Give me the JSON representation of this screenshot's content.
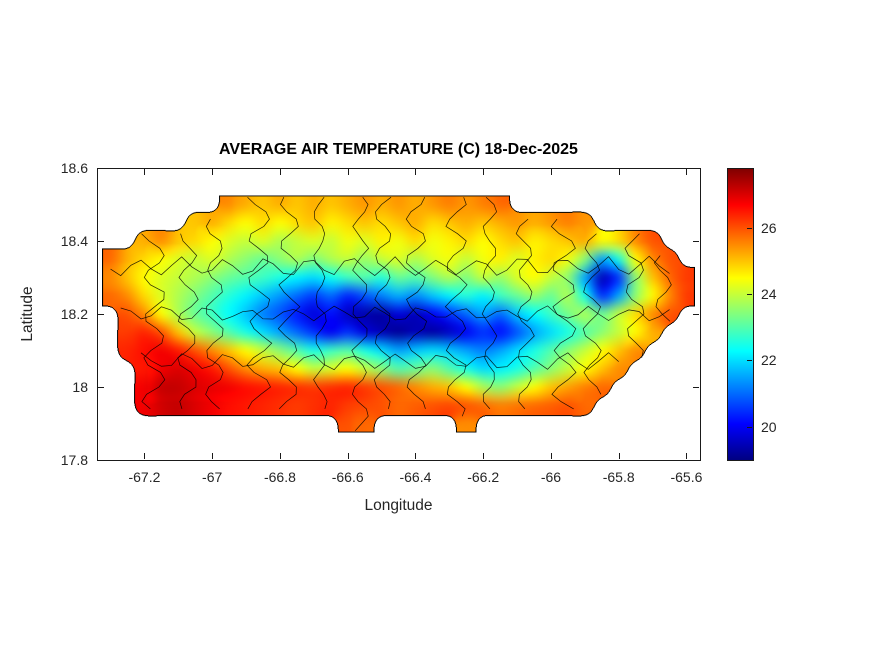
{
  "figure": {
    "title": "AVERAGE AIR TEMPERATURE (C) 18-Dec-2025",
    "xlabel": "Longitude",
    "ylabel": "Latitude"
  },
  "axes": {
    "x_ticks": [
      "-67.2",
      "-67",
      "-66.8",
      "-66.6",
      "-66.4",
      "-66.2",
      "-66",
      "-65.8",
      "-65.6"
    ],
    "x_tick_values": [
      -67.2,
      -67,
      -66.8,
      -66.6,
      -66.4,
      -66.2,
      -66,
      -65.8,
      -65.6
    ],
    "y_ticks": [
      "17.8",
      "18",
      "18.2",
      "18.4",
      "18.6"
    ],
    "y_tick_values": [
      17.8,
      18,
      18.2,
      18.4,
      18.6
    ],
    "xlim": [
      -67.34,
      -65.56
    ],
    "ylim": [
      17.8,
      18.6
    ]
  },
  "colorbar": {
    "tick_labels": [
      "20",
      "22",
      "24",
      "26"
    ],
    "tick_values": [
      20,
      22,
      24,
      26
    ],
    "range": [
      19,
      27.8
    ],
    "colormap": "jet"
  },
  "chart_data": {
    "type": "heatmap",
    "title": "AVERAGE AIR TEMPERATURE (C) 18-Dec-2025",
    "date": "18-Dec-2025",
    "region": "Puerto Rico (municipal boundaries drawn in black)",
    "units": "degrees Celsius",
    "xlabel": "Longitude",
    "ylabel": "Latitude",
    "colormap": "jet",
    "color_range": [
      19,
      27.8
    ],
    "cell_size_deg": 0.05,
    "lons": [
      -67.3,
      -67.25,
      -67.2,
      -67.15,
      -67.1,
      -67.05,
      -67,
      -66.95,
      -66.9,
      -66.85,
      -66.8,
      -66.75,
      -66.7,
      -66.65,
      -66.6,
      -66.55,
      -66.5,
      -66.45,
      -66.4,
      -66.35,
      -66.3,
      -66.25,
      -66.2,
      -66.15,
      -66.1,
      -66.05,
      -66,
      -65.95,
      -65.9,
      -65.85,
      -65.8,
      -65.75,
      -65.7,
      -65.65,
      -65.6
    ],
    "lats": [
      17.9,
      17.95,
      18,
      18.05,
      18.1,
      18.15,
      18.2,
      18.25,
      18.3,
      18.35,
      18.4,
      18.45,
      18.5
    ],
    "values": [
      [
        null,
        null,
        null,
        null,
        null,
        null,
        null,
        null,
        null,
        null,
        null,
        null,
        null,
        null,
        26,
        25.8,
        null,
        null,
        null,
        null,
        null,
        25.5,
        null,
        null,
        null,
        null,
        null,
        null,
        null,
        null,
        null,
        null,
        null,
        null,
        null
      ],
      [
        null,
        null,
        26.8,
        27.1,
        27.2,
        27,
        26.8,
        26.6,
        26.5,
        26.4,
        26.3,
        26.2,
        26.3,
        26.4,
        26.2,
        26.1,
        26,
        25.8,
        25.9,
        26,
        26.1,
        26,
        25.8,
        25.6,
        25.7,
        25.8,
        25.9,
        26,
        25.8,
        null,
        null,
        null,
        null,
        null,
        null
      ],
      [
        null,
        null,
        26.8,
        27.2,
        27.2,
        27,
        26.9,
        26.8,
        26.6,
        26.5,
        26.4,
        26.3,
        26.2,
        26.3,
        26.4,
        26.2,
        26,
        25.8,
        25.5,
        25.2,
        25,
        24.5,
        23.8,
        23.5,
        24,
        24.5,
        25,
        25.3,
        25.6,
        25.8,
        null,
        null,
        null,
        null,
        null
      ],
      [
        null,
        null,
        26.5,
        26.8,
        27,
        26.8,
        26.5,
        26,
        25.5,
        25.2,
        25,
        24.5,
        24,
        24.2,
        24.5,
        24,
        23.5,
        23,
        23.2,
        23.5,
        23,
        22.5,
        22,
        22.2,
        22.5,
        23,
        23.5,
        24,
        24.5,
        25,
        25.5,
        null,
        null,
        null,
        null
      ],
      [
        null,
        26.4,
        26.6,
        26.8,
        26.5,
        26,
        25.5,
        25,
        24.5,
        24,
        23.5,
        23,
        22.5,
        22.8,
        23,
        22.5,
        22,
        21.5,
        21.8,
        22,
        21.8,
        21.5,
        21.2,
        21.5,
        22,
        22.5,
        23,
        23.5,
        24,
        24.5,
        25,
        25.5,
        null,
        null,
        null
      ],
      [
        null,
        26.2,
        26.4,
        26,
        25,
        24,
        23.5,
        23,
        22.5,
        22,
        21.5,
        21,
        20.5,
        20,
        20.5,
        19.8,
        19.5,
        19.2,
        19.5,
        19.3,
        19.6,
        20,
        20.5,
        20.2,
        20.8,
        21.5,
        22,
        22.5,
        23,
        23.5,
        24,
        24.5,
        25.2,
        null,
        null
      ],
      [
        null,
        26,
        25.5,
        24.5,
        23.8,
        23.2,
        22.8,
        22.3,
        21.8,
        21.2,
        20.8,
        20.3,
        19.8,
        20.2,
        19.6,
        19.4,
        19.3,
        19.8,
        19.5,
        20,
        20.5,
        21,
        21.5,
        21,
        21.8,
        22.3,
        22.8,
        23.3,
        23.8,
        23.2,
        24,
        24.8,
        25.5,
        26,
        null
      ],
      [
        25.8,
        25.5,
        24.8,
        24.2,
        23.8,
        23.4,
        23,
        22.6,
        22.2,
        21.8,
        21.4,
        21,
        20.6,
        21,
        20.4,
        20.8,
        21.2,
        21.6,
        21.3,
        21.8,
        22.2,
        22.6,
        22.2,
        22.8,
        23.2,
        23.6,
        23.2,
        23.8,
        22.5,
        20.5,
        21.5,
        23.5,
        24.5,
        25.5,
        26.2
      ],
      [
        25.5,
        25,
        24.5,
        24.2,
        24,
        23.8,
        23.5,
        23.2,
        23,
        22.8,
        22.5,
        22.2,
        22,
        22.4,
        22.8,
        23,
        22.6,
        23.2,
        23,
        23.4,
        23.8,
        23.4,
        24,
        23.6,
        24.2,
        24.5,
        24,
        23.5,
        21.5,
        19.5,
        20.5,
        23.5,
        25,
        25.8,
        26.2
      ],
      [
        25.8,
        25.2,
        24.8,
        24.5,
        24.2,
        24,
        24.2,
        23.8,
        23.5,
        23.2,
        23.5,
        23.8,
        23.4,
        23.8,
        24,
        23.6,
        24,
        24.2,
        23.8,
        24.2,
        24.4,
        24,
        24.4,
        24.6,
        24.2,
        24.6,
        24.8,
        24.4,
        23.5,
        21.5,
        22.5,
        24.5,
        25.5,
        26,
        null
      ],
      [
        null,
        null,
        25.2,
        25.5,
        25,
        24.8,
        24.5,
        24.2,
        24,
        24.2,
        23.8,
        24,
        24.2,
        24,
        24.4,
        24.2,
        24.6,
        24.4,
        24.8,
        24.4,
        24.6,
        24.8,
        24.5,
        24.8,
        25,
        24.6,
        24.8,
        25,
        25.2,
        24.5,
        24.8,
        25.5,
        26,
        null,
        null
      ],
      [
        null,
        null,
        null,
        null,
        null,
        25,
        25.2,
        24.8,
        24.5,
        24.8,
        24.5,
        24.8,
        25,
        24.6,
        24.8,
        25,
        24.8,
        25,
        25.2,
        24.8,
        25,
        25.2,
        25,
        25.2,
        25.4,
        25.2,
        25.4,
        25.6,
        25.4,
        null,
        null,
        null,
        null,
        null,
        null
      ],
      [
        null,
        null,
        null,
        null,
        null,
        null,
        null,
        25.5,
        25.2,
        25,
        25.2,
        25,
        25.2,
        25,
        25.2,
        25.4,
        25.2,
        25.4,
        25.2,
        25.4,
        25.6,
        25.4,
        25.6,
        25.8,
        null,
        null,
        null,
        null,
        null,
        null,
        null,
        null,
        null,
        null,
        null
      ]
    ]
  }
}
